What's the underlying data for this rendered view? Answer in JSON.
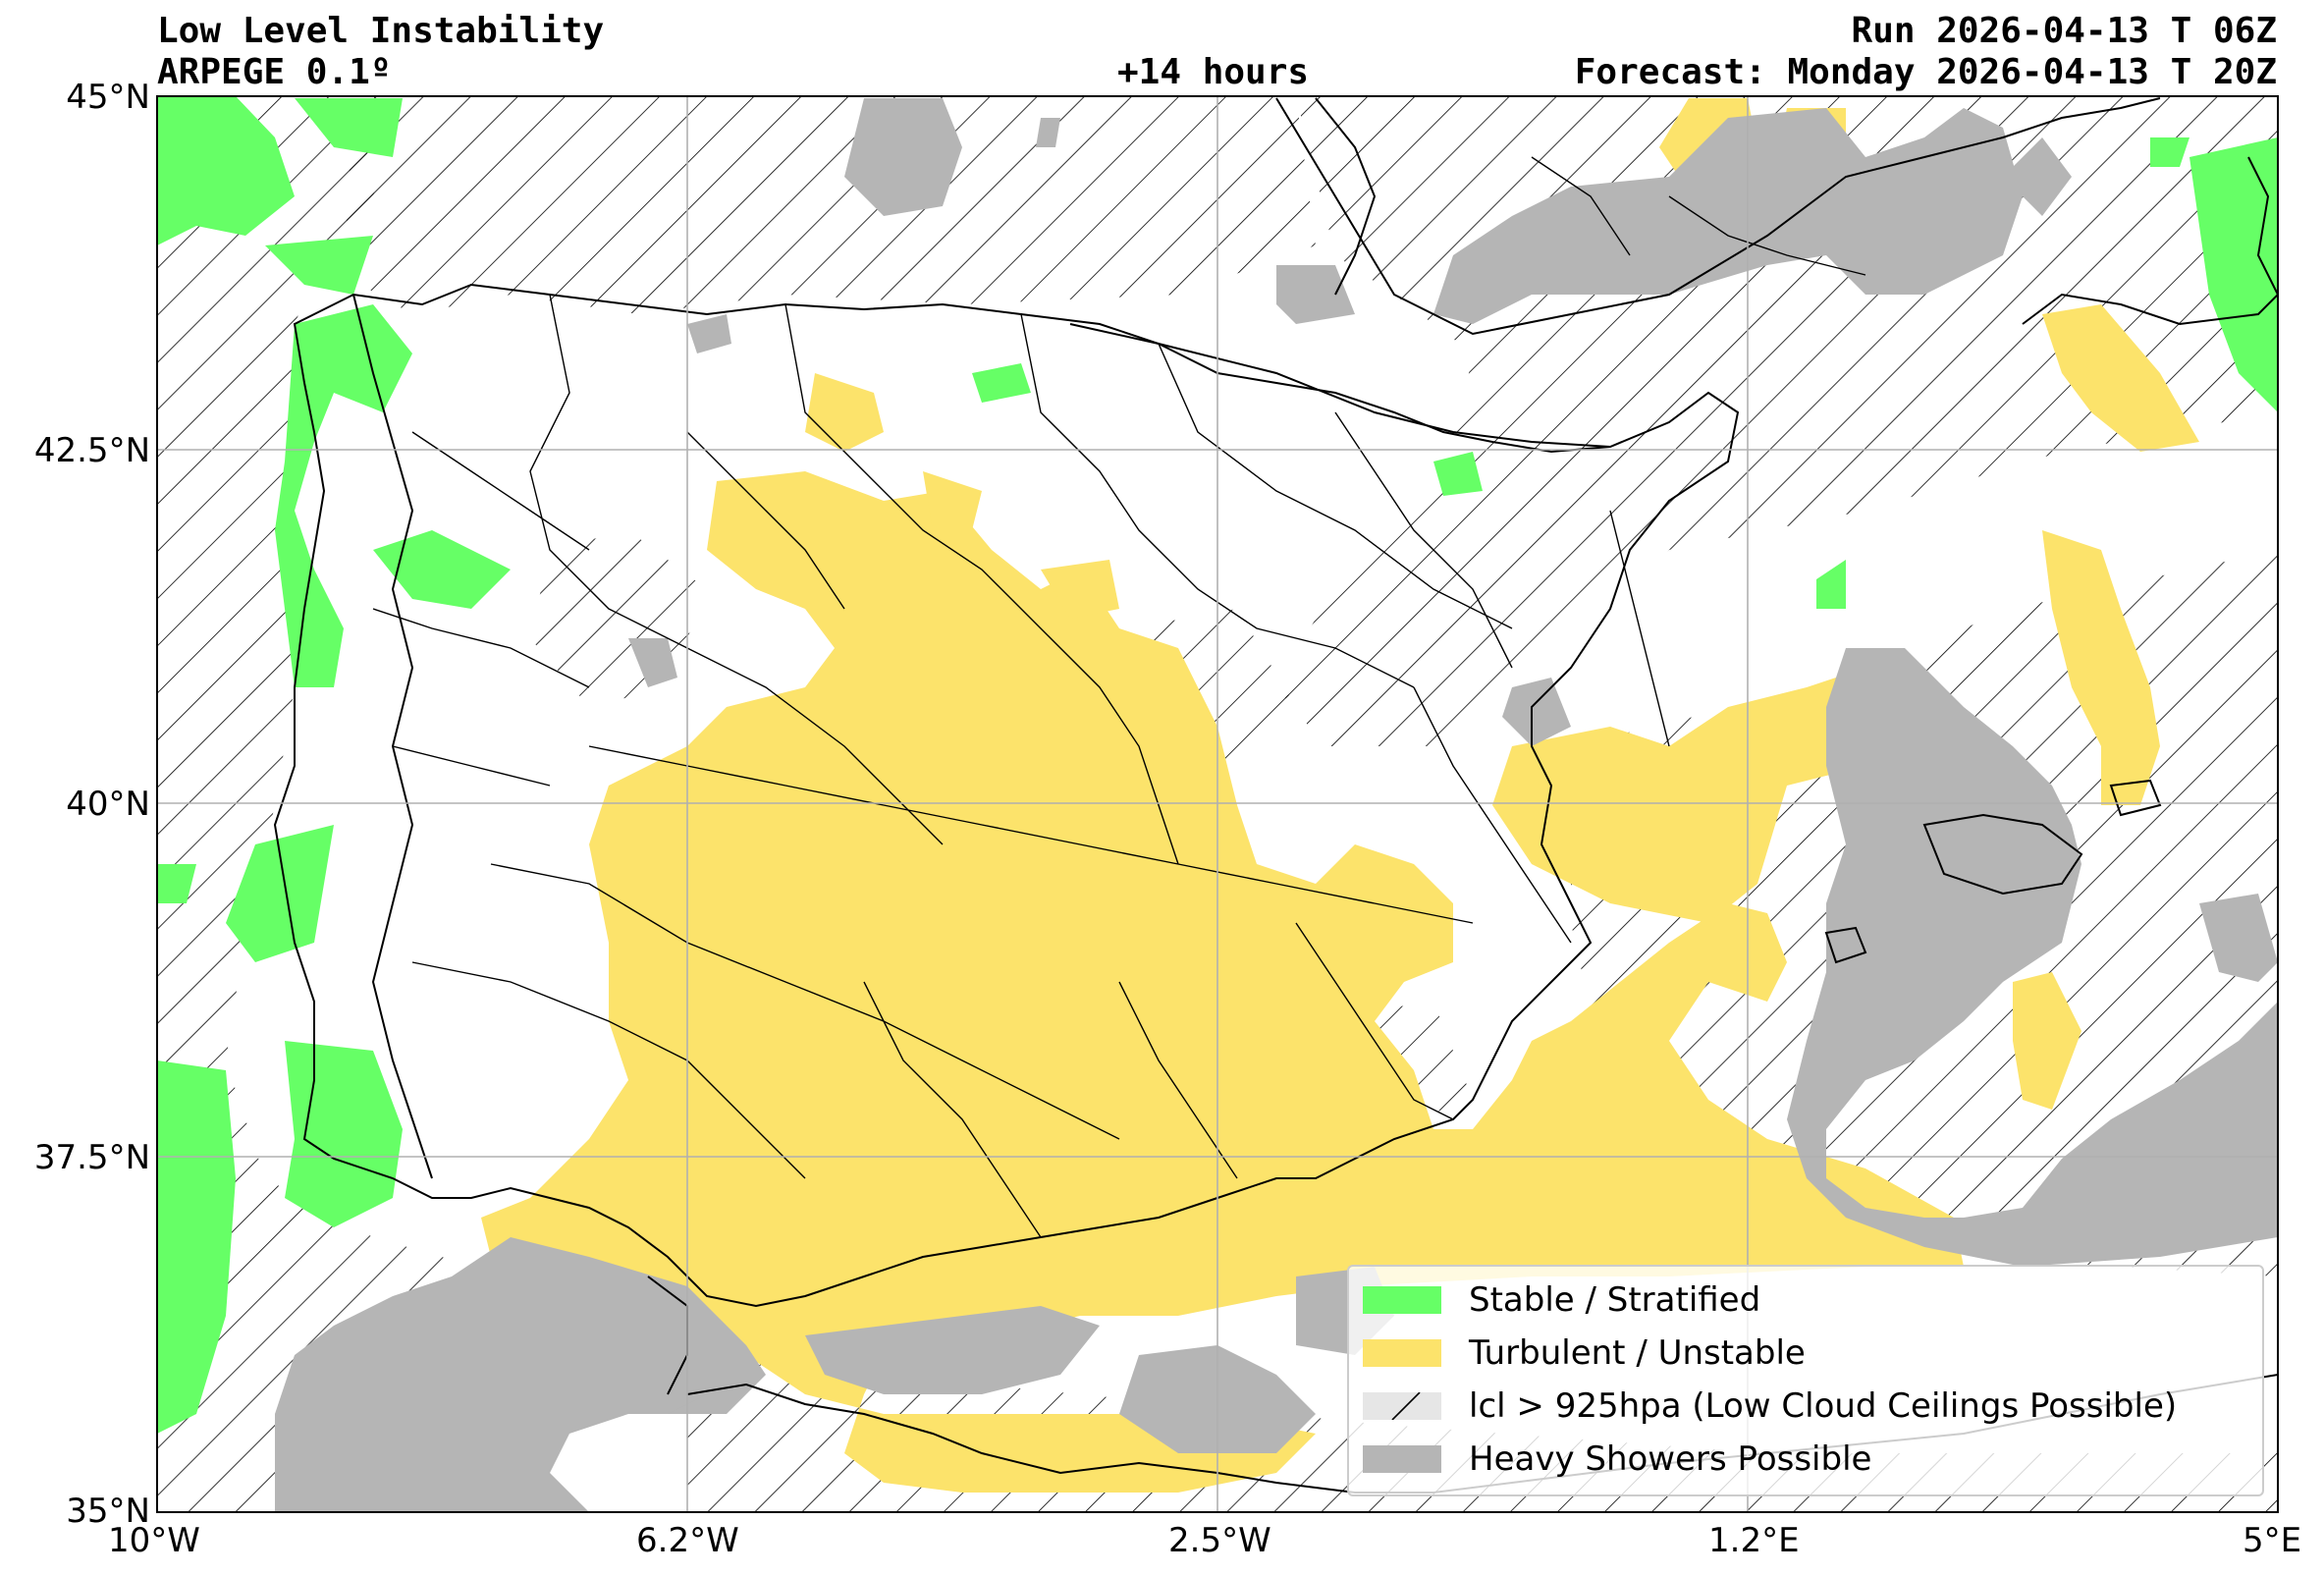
{
  "header": {
    "title": "Low Level Instability",
    "model": "ARPEGE 0.1º",
    "lead_time": "+14 hours",
    "run": "Run 2026-04-13 T 06Z",
    "forecast": "Forecast: Monday 2026-04-13 T 20Z"
  },
  "axes": {
    "x_ticks": [
      "10°W",
      "6.2°W",
      "2.5°W",
      "1.2°E",
      "5°E"
    ],
    "y_ticks": [
      "45°N",
      "42.5°N",
      "40°N",
      "37.5°N",
      "35°N"
    ]
  },
  "legend": {
    "items": [
      {
        "label": "Stable / Stratified",
        "color": "#66ff66"
      },
      {
        "label": "Turbulent / Unstable",
        "color": "#fce36b"
      },
      {
        "label": "lcl > 925hpa (Low Cloud Ceilings Possible)",
        "color": "#e6e6e6"
      },
      {
        "label": "Heavy Showers Possible",
        "color": "#b5b5b5"
      }
    ]
  },
  "colors": {
    "stable": "#66ff66",
    "unstable": "#fce36b",
    "low_cloud": "#e6e6e6",
    "showers": "#b5b5b5",
    "grid": "#b0b0b0"
  }
}
